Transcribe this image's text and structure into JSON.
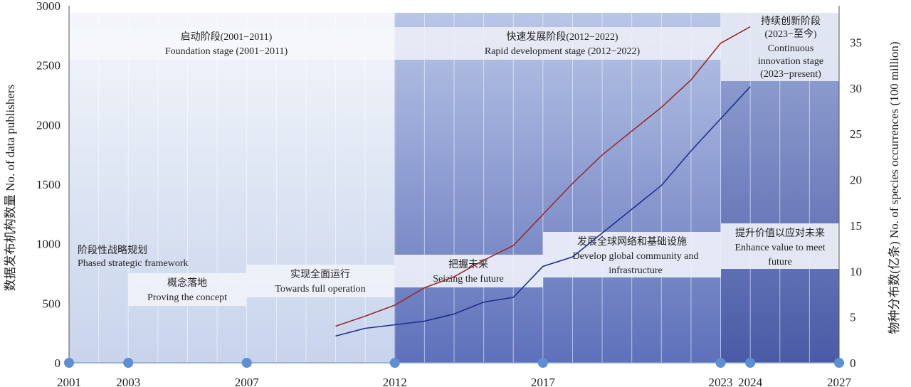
{
  "chart_data": {
    "type": "line",
    "ylabel_left": "数据发布机构数量 No. of data publishers",
    "ylabel_right": "物种分布数(亿条) No. of species occurrences (100 million)",
    "xlim": [
      2001,
      2027
    ],
    "ylim_left": [
      0,
      3000
    ],
    "ylim_right": [
      0,
      39
    ],
    "x_ticks": [
      "2001",
      "2003",
      "2007",
      "2012",
      "2017",
      "2023",
      "2024",
      "2027"
    ],
    "y_ticks_left": [
      "0",
      "500",
      "1000",
      "1500",
      "2000",
      "2500",
      "3000"
    ],
    "y_ticks_right": [
      "0",
      "5",
      "10",
      "15",
      "20",
      "25",
      "30",
      "35"
    ],
    "phases": [
      {
        "zh": "启动阶段(2001−2011)",
        "en": "Foundation stage (2001−2011)"
      },
      {
        "zh": "快速发展阶段(2012−2022)",
        "en": "Rapid development stage (2012−2022)"
      },
      {
        "zh": "持续创新阶段",
        "zh2": "(2023−至今)",
        "en": "Continuous",
        "en2": "innovation stage",
        "en3": "(2023−present)"
      }
    ],
    "strategies": [
      {
        "zh": "阶段性战略规划",
        "en": "Phased strategic framework"
      },
      {
        "zh": "概念落地",
        "en": "Proving the concept"
      },
      {
        "zh": "实现全面运行",
        "en": "Towards full operation"
      },
      {
        "zh": "把握未来",
        "en": "Seizing the future"
      },
      {
        "zh": "发展全球网络和基础设施",
        "en": "Develop global community and",
        "en2": "infrastructure"
      },
      {
        "zh": "提升价值以应对未来",
        "en": "Enhance value to meet",
        "en2": "future"
      }
    ],
    "series": [
      {
        "axis": "left",
        "color": "#1f2f8f",
        "x": [
          2010,
          2011,
          2012,
          2013,
          2014,
          2015,
          2016,
          2017,
          2018,
          2019,
          2020,
          2021,
          2022,
          2023,
          2024
        ],
        "y": [
          225,
          290,
          320,
          350,
          410,
          510,
          550,
          810,
          890,
          1090,
          1290,
          1490,
          1780,
          2050,
          2320
        ]
      },
      {
        "axis": "right",
        "color": "#9b2a2a",
        "x": [
          2010,
          2011,
          2012,
          2013,
          2014,
          2015,
          2016,
          2017,
          2018,
          2019,
          2020,
          2021,
          2022,
          2023,
          2024
        ],
        "y": [
          4.0,
          5.1,
          6.3,
          8.2,
          9.4,
          11.2,
          12.8,
          16.2,
          19.6,
          22.7,
          25.3,
          27.9,
          30.9,
          34.9,
          36.7
        ]
      }
    ]
  }
}
